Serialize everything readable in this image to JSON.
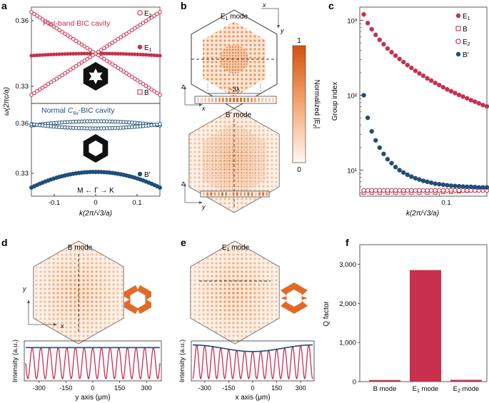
{
  "panel_labels": [
    "a",
    "b",
    "c",
    "d",
    "e",
    "f"
  ],
  "colors": {
    "red": "#c8304d",
    "blue": "#1f4e79",
    "orange": "#e06a1e",
    "grey": "#999999"
  },
  "panel_a": {
    "top_title": "Flat-band BIC cavity",
    "bottom_title_pre": "Normal ",
    "bottom_title_sym": "C",
    "bottom_title_sub": "6v",
    "bottom_title_post": "-BIC cavity",
    "ylabel": "ω(2πc/a)",
    "xlabel": "k(2π/√3/a)",
    "xticks": [
      "-0.1",
      "0",
      "0.1"
    ],
    "yticks_top": [
      "0.36",
      "0.33"
    ],
    "yticks_bottom": [
      "0.36",
      "0.33"
    ],
    "legend_top": [
      {
        "label": "E",
        "sub": "2",
        "marker": "open-circle"
      },
      {
        "label": "E",
        "sub": "1",
        "marker": "filled-circle"
      },
      {
        "label": "B",
        "sub": "",
        "marker": "open-square"
      }
    ],
    "legend_bottom": [
      {
        "label": "B′",
        "sub": "",
        "marker": "filled-circle"
      }
    ],
    "direction_label": "M ← Γ → K"
  },
  "panel_b": {
    "e1_label": "E",
    "e1_sub": "1",
    "e1_suffix": " mode",
    "b_label": "B′ mode",
    "scale_label": "~3λ",
    "colorbar_max": "1",
    "colorbar_min": "0",
    "colorbar_label": "Normalized |E",
    "colorbar_sub": "z",
    "colorbar_end": "|",
    "axes_top": {
      "x": "x",
      "y": "y"
    },
    "axes_mid": {
      "x": "x",
      "z": "z"
    },
    "axes_bot": {
      "y": "y",
      "z": "z"
    }
  },
  "chart_data": [
    {
      "panel": "c",
      "type": "scatter",
      "xlabel": "k(2π/√3/a)",
      "ylabel": "Group index",
      "yscale": "log",
      "xlim": [
        0,
        0.16
      ],
      "ylim": [
        4.5,
        1500
      ],
      "xticks": [
        "0.1"
      ],
      "yticks": [
        "10¹",
        "10²",
        "10³"
      ],
      "series": [
        {
          "name": "E1",
          "label": "E",
          "sub": "1",
          "marker": "filled-circle",
          "color": "#c8304d",
          "x": [
            0.005,
            0.01,
            0.015,
            0.02,
            0.025,
            0.03,
            0.035,
            0.04,
            0.045,
            0.05,
            0.055,
            0.06,
            0.065,
            0.07,
            0.075,
            0.08,
            0.085,
            0.09,
            0.095,
            0.1,
            0.105,
            0.11,
            0.115,
            0.12,
            0.125,
            0.13,
            0.135,
            0.14,
            0.145,
            0.15,
            0.155,
            0.16
          ],
          "y": [
            1200,
            920,
            760,
            640,
            550,
            480,
            420,
            375,
            338,
            305,
            278,
            253,
            232,
            212,
            196,
            182,
            168,
            157,
            146,
            137,
            128,
            120,
            113,
            107,
            101,
            96,
            91,
            86,
            82,
            78,
            74,
            71
          ]
        },
        {
          "name": "B",
          "label": "B",
          "sub": "",
          "marker": "open-square",
          "color": "#c8304d",
          "x": [
            0.005,
            0.015,
            0.025,
            0.035,
            0.045,
            0.055,
            0.065,
            0.075,
            0.085,
            0.095,
            0.105,
            0.115,
            0.125,
            0.135,
            0.145,
            0.155
          ],
          "y": [
            5.2,
            5.2,
            5.2,
            5.2,
            5.2,
            5.2,
            5.2,
            5.2,
            5.2,
            5.2,
            5.3,
            5.3,
            5.4,
            5.5,
            5.6,
            5.7
          ]
        },
        {
          "name": "E2",
          "label": "E",
          "sub": "2",
          "marker": "open-circle",
          "color": "#c8304d",
          "x": [
            0.005,
            0.01,
            0.015,
            0.02,
            0.025,
            0.03,
            0.035,
            0.04,
            0.045,
            0.05,
            0.055,
            0.06,
            0.065,
            0.07,
            0.075,
            0.08,
            0.085,
            0.09,
            0.095,
            0.1,
            0.105,
            0.11,
            0.115,
            0.12,
            0.125,
            0.13,
            0.135,
            0.14,
            0.145,
            0.15,
            0.155,
            0.16
          ],
          "y": [
            5.2,
            5.2,
            5.2,
            5.2,
            5.2,
            5.2,
            5.2,
            5.2,
            5.2,
            5.2,
            5.2,
            5.2,
            5.2,
            5.2,
            5.2,
            5.2,
            5.2,
            5.2,
            5.2,
            5.2,
            5.2,
            5.2,
            5.2,
            5.2,
            5.2,
            5.2,
            5.2,
            5.2,
            5.2,
            5.2,
            5.2,
            5.2
          ]
        },
        {
          "name": "B'",
          "label": "B′",
          "sub": "",
          "marker": "filled-circle",
          "color": "#1f4e79",
          "x": [
            0.005,
            0.01,
            0.015,
            0.02,
            0.025,
            0.03,
            0.035,
            0.04,
            0.045,
            0.05,
            0.055,
            0.06,
            0.065,
            0.07,
            0.075,
            0.08,
            0.085,
            0.09,
            0.095,
            0.1,
            0.105,
            0.11,
            0.115,
            0.12,
            0.125,
            0.13,
            0.135,
            0.14,
            0.145,
            0.15,
            0.155,
            0.16
          ],
          "y": [
            100,
            50,
            33,
            25,
            20,
            16.5,
            14,
            12.4,
            11,
            10,
            9.3,
            8.7,
            8.2,
            7.8,
            7.5,
            7.2,
            7.0,
            6.8,
            6.6,
            6.5,
            6.4,
            6.3,
            6.2,
            6.15,
            6.1,
            6.05,
            6.0,
            6.0,
            5.95,
            5.9,
            5.9,
            5.9
          ]
        }
      ]
    },
    {
      "panel": "f",
      "type": "bar",
      "ylabel": "Q factor",
      "ylim": [
        0,
        3500
      ],
      "yticks": [
        "0",
        "1,000",
        "2,000",
        "3,000"
      ],
      "categories": [
        "B mode",
        "E1 mode",
        "E2 mode"
      ],
      "category_labels": [
        {
          "label": "B mode",
          "sub": ""
        },
        {
          "label": "E",
          "sub": "1",
          "suffix": " mode"
        },
        {
          "label": "E",
          "sub": "2",
          "suffix": " mode"
        }
      ],
      "values": [
        40,
        2850,
        45
      ],
      "color": "#c8304d"
    }
  ],
  "panel_d": {
    "mode_label": "B mode",
    "ylabel": "Intensity (a.u.)",
    "xlabel": "y axis (μm)",
    "xticks": [
      "-300",
      "-150",
      "0",
      "150",
      "300"
    ],
    "axes": {
      "x": "x",
      "y": "y"
    }
  },
  "panel_e": {
    "mode_label": "E",
    "mode_sub": "1",
    "mode_suffix": " mode",
    "ylabel": "Intensity (a.u.)",
    "xlabel": "x axis (μm)",
    "xticks": [
      "-300",
      "-150",
      "0",
      "150",
      "300"
    ]
  }
}
